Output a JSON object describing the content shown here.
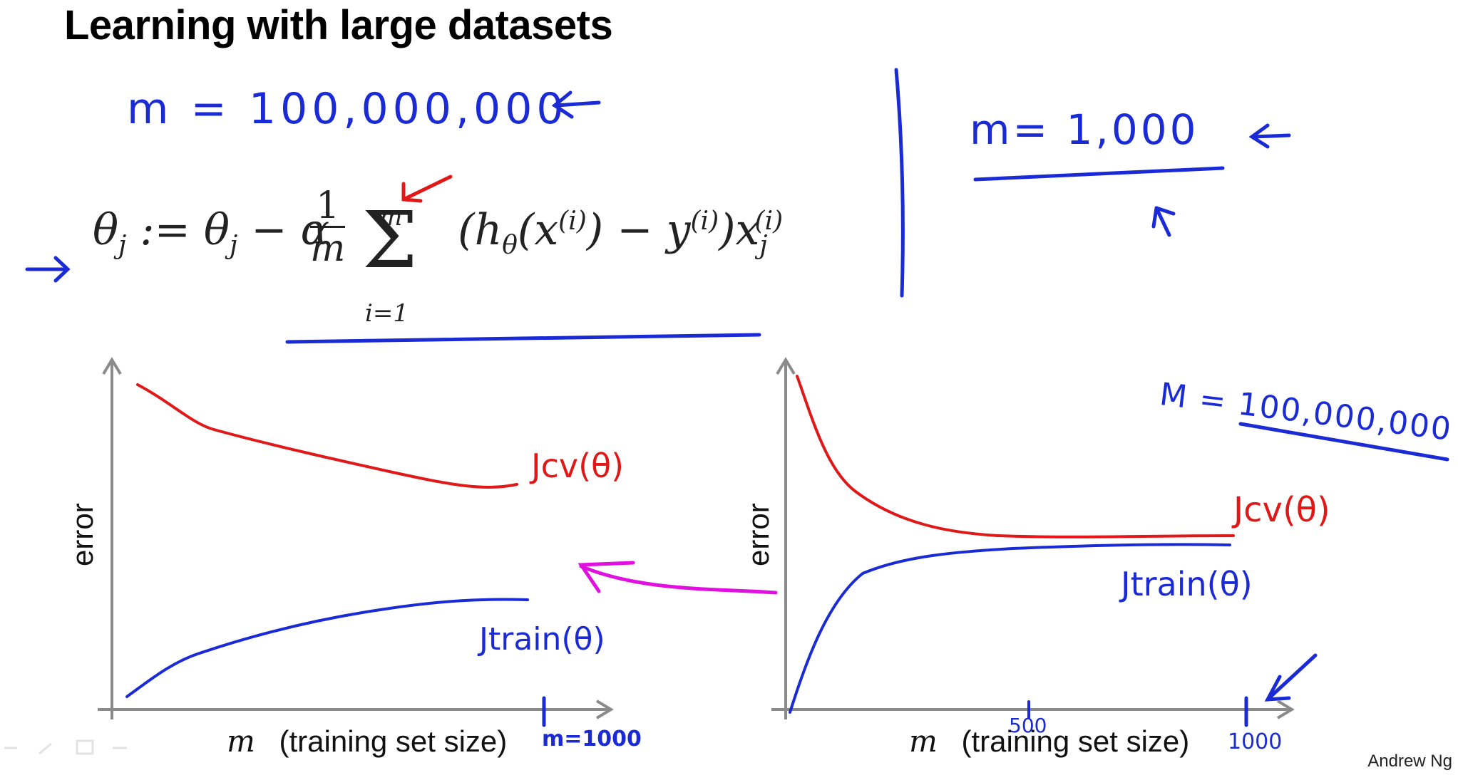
{
  "slide": {
    "title": "Learning with large datasets",
    "credit": "Andrew Ng"
  },
  "annotations": {
    "m_large": "m = 100,000,000",
    "m_small": "m= 1,000",
    "m_large_right": "M = 100,000,000",
    "m_1000_left": "m=1000",
    "tick_500": "500",
    "tick_1000": "1000"
  },
  "formula": {
    "sum_upper": "m",
    "sum_lower": "i=1"
  },
  "left_plot": {
    "ylabel": "error",
    "xlabel_var": "m",
    "xlabel_text": "(training set size)",
    "cv_label": "Jcv(θ)",
    "train_label": "Jtrain(θ)"
  },
  "right_plot": {
    "ylabel": "error",
    "xlabel_var": "m",
    "xlabel_text": "(training set size)",
    "cv_label": "Jcv(θ)",
    "train_label": "Jtrain(θ)"
  },
  "colors": {
    "blue": "#1a2bd6",
    "red": "#e01818",
    "magenta": "#e010e0",
    "axis": "#8a8a8a"
  }
}
